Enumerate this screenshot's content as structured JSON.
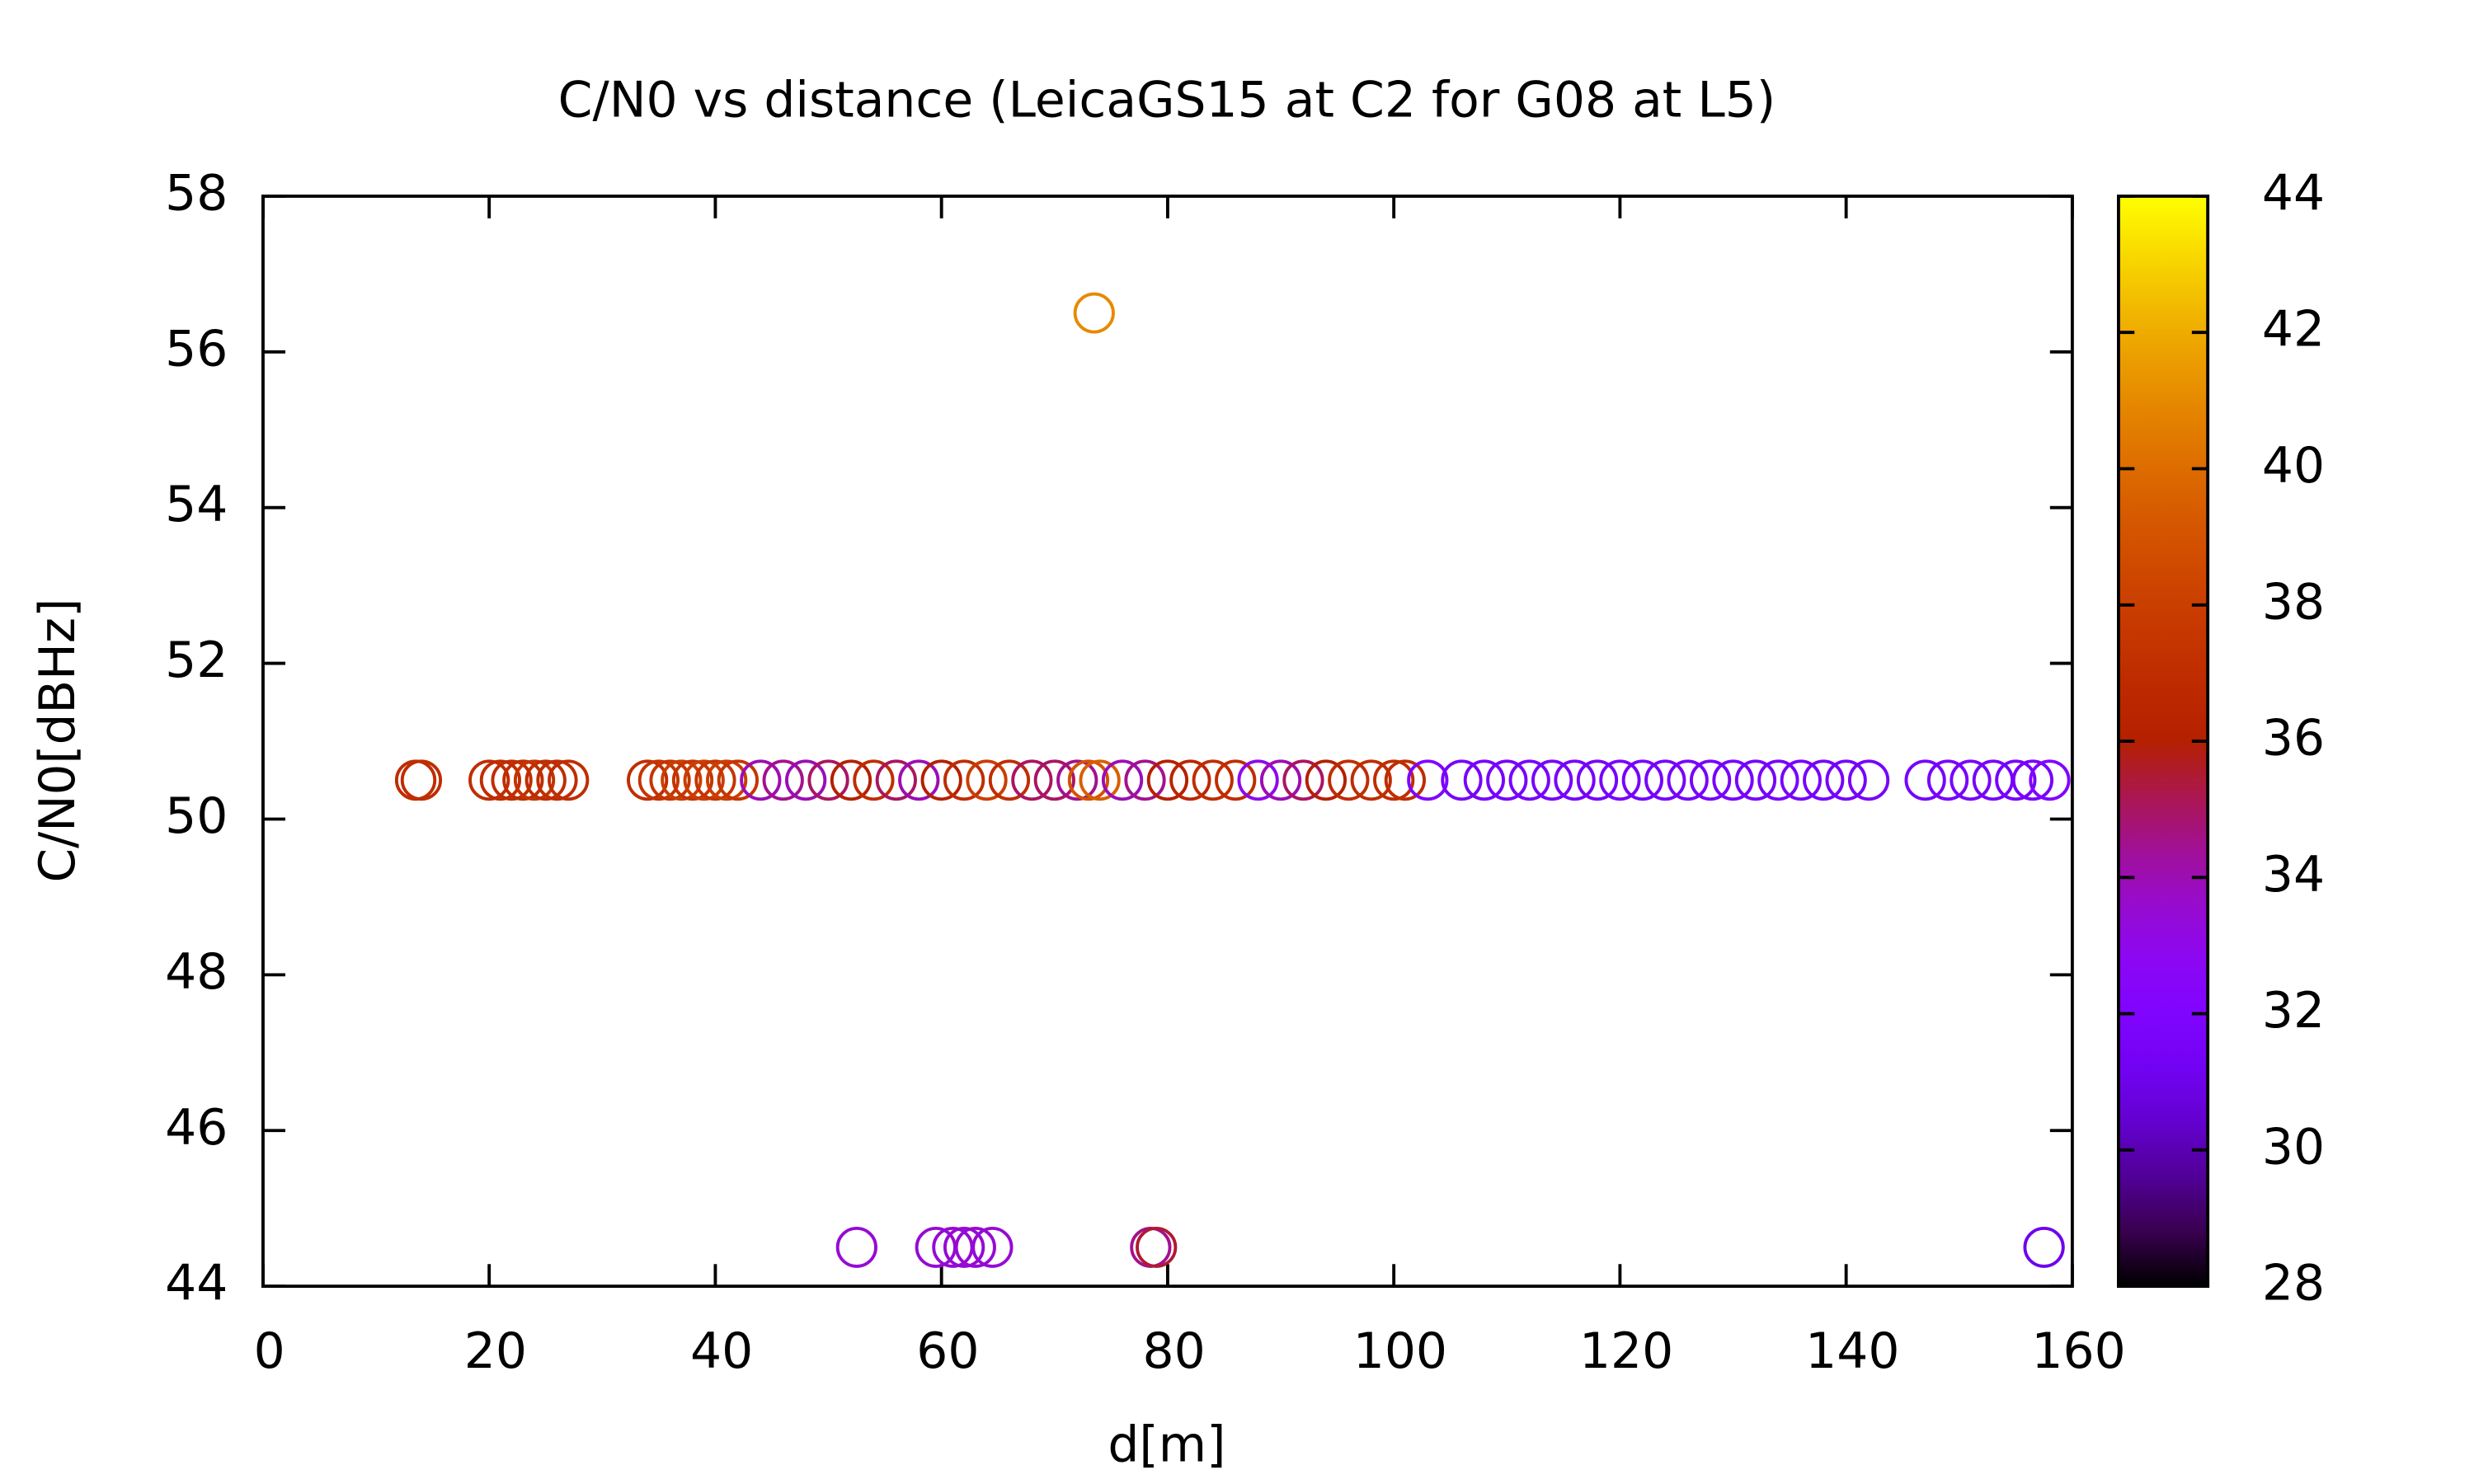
{
  "chart_data": {
    "type": "scatter",
    "title": "C/N0 vs distance (LeicaGS15 at C2 for G08 at L5)",
    "x_label": "d[m]",
    "y_label": "C/N0[dBHz]",
    "x": [
      13.5,
      14,
      20,
      21,
      22,
      23,
      24,
      25,
      26,
      27,
      34,
      35,
      36,
      37,
      38,
      39,
      40,
      41,
      42,
      44,
      46,
      48,
      50,
      52,
      54,
      56,
      58,
      60,
      62,
      64,
      66,
      68,
      70,
      72,
      73,
      74,
      76,
      78,
      80,
      82,
      84,
      86,
      88,
      90,
      92,
      94,
      96,
      98,
      100,
      101,
      103,
      106,
      108,
      110,
      112,
      114,
      116,
      118,
      120,
      122,
      124,
      126,
      128,
      130,
      132,
      134,
      136,
      138,
      140,
      142,
      147,
      149,
      151,
      153,
      155,
      156.5,
      158,
      73.5,
      52.5,
      59.5,
      61,
      62,
      63,
      64.5,
      78.5,
      79,
      157.5
    ],
    "values": [
      50.5,
      50.5,
      50.5,
      50.5,
      50.5,
      50.5,
      50.5,
      50.5,
      50.5,
      50.5,
      50.5,
      50.5,
      50.5,
      50.5,
      50.5,
      50.5,
      50.5,
      50.5,
      50.5,
      50.5,
      50.5,
      50.5,
      50.5,
      50.5,
      50.5,
      50.5,
      50.5,
      50.5,
      50.5,
      50.5,
      50.5,
      50.5,
      50.5,
      50.5,
      50.5,
      50.5,
      50.5,
      50.5,
      50.5,
      50.5,
      50.5,
      50.5,
      50.5,
      50.5,
      50.5,
      50.5,
      50.5,
      50.5,
      50.5,
      50.5,
      50.5,
      50.5,
      50.5,
      50.5,
      50.5,
      50.5,
      50.5,
      50.5,
      50.5,
      50.5,
      50.5,
      50.5,
      50.5,
      50.5,
      50.5,
      50.5,
      50.5,
      50.5,
      50.5,
      50.5,
      50.5,
      50.5,
      50.5,
      50.5,
      50.5,
      50.5,
      50.5,
      56.5,
      44.5,
      44.5,
      44.5,
      44.5,
      44.5,
      44.5,
      44.5,
      44.5,
      44.5
    ],
    "cb_values": [
      37,
      37,
      37,
      37,
      37,
      37,
      37.5,
      37,
      37,
      37,
      37,
      37.5,
      37.5,
      38,
      37.5,
      38,
      37.5,
      38,
      37.5,
      34,
      34.5,
      34,
      35,
      36,
      37,
      35,
      34,
      36,
      37,
      38,
      37,
      35,
      35,
      34.5,
      39,
      39.5,
      34,
      34.5,
      36,
      36.5,
      37,
      37,
      33,
      34,
      35,
      36,
      37,
      37,
      37,
      37,
      32,
      31.5,
      31.5,
      31.5,
      31.5,
      31.5,
      31.5,
      31.5,
      31.5,
      31.5,
      31.5,
      31.5,
      31.5,
      31.5,
      31.5,
      31.5,
      31.5,
      31.5,
      31.5,
      31.5,
      31.5,
      31.5,
      31.5,
      31.5,
      31.5,
      31.5,
      32,
      41,
      33.5,
      33.5,
      33.5,
      33.5,
      33.5,
      33.5,
      34.5,
      35.5,
      31
    ],
    "xlim": [
      0,
      160
    ],
    "xticks": [
      0,
      20,
      40,
      60,
      80,
      100,
      120,
      140,
      160
    ],
    "ylim": [
      44,
      58
    ],
    "yticks": [
      44,
      46,
      48,
      50,
      52,
      54,
      56,
      58
    ],
    "cblim": [
      28,
      44
    ],
    "cbticks": [
      28,
      30,
      32,
      34,
      36,
      38,
      40,
      42,
      44
    ],
    "colormap": "gnuplot",
    "marker": "open-circle",
    "grid": false
  }
}
